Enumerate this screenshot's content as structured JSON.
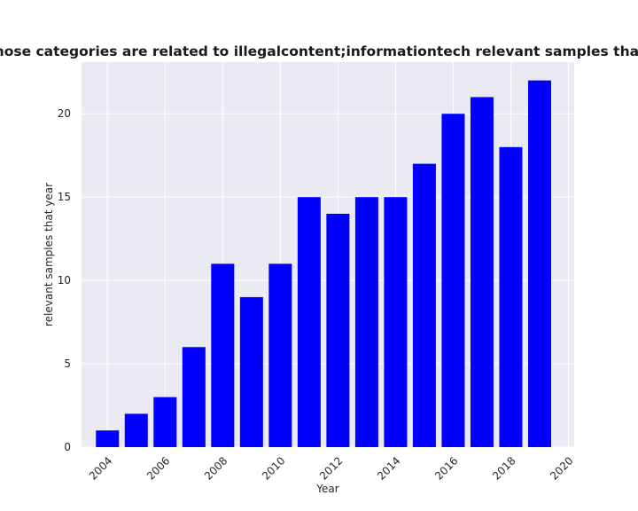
{
  "chart_data": {
    "type": "bar",
    "title": "Number of samples whose categories are related to illegalcontent;informationtech relevant samples that year in privacy policies",
    "xlabel": "Year",
    "ylabel": "relevant samples that year",
    "categories": [
      2004,
      2005,
      2006,
      2007,
      2008,
      2009,
      2010,
      2011,
      2012,
      2013,
      2014,
      2015,
      2016,
      2017,
      2018,
      2019
    ],
    "values": [
      1,
      2,
      3,
      6,
      11,
      9,
      11,
      15,
      14,
      15,
      15,
      17,
      20,
      21,
      18,
      22
    ],
    "x_ticks": [
      "2004",
      "2006",
      "2008",
      "2010",
      "2012",
      "2014",
      "2016",
      "2018",
      "2020"
    ],
    "y_ticks": [
      "0",
      "5",
      "10",
      "15",
      "20"
    ],
    "xlim": [
      2003.1,
      2020.2
    ],
    "ylim": [
      0,
      23.1
    ],
    "bar_color": "#0000ff",
    "plot_background": "#eaeaf2",
    "grid_color": "#ffffff",
    "grid": true
  }
}
